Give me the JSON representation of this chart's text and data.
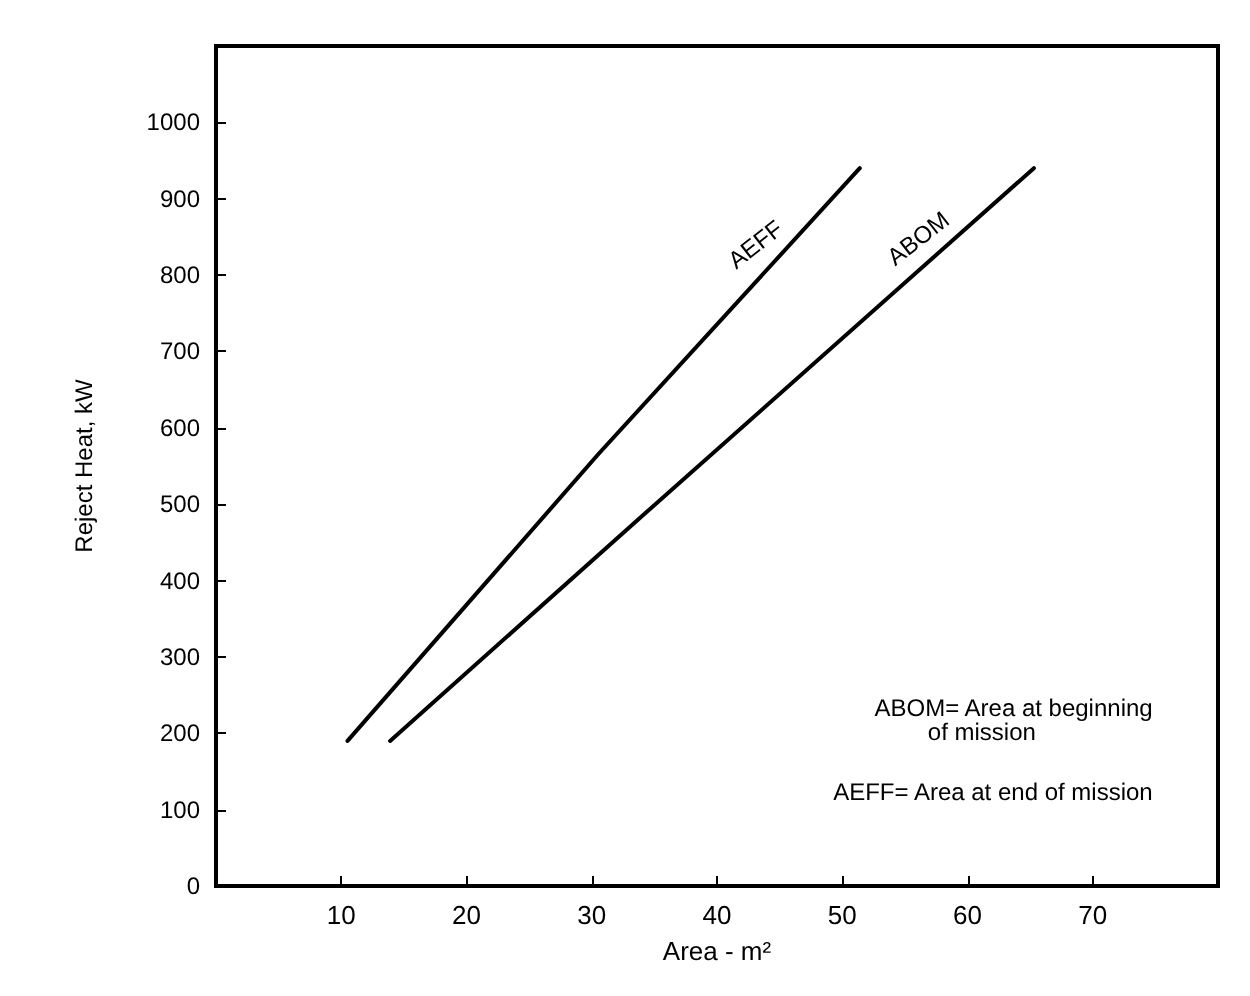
{
  "chart_data": {
    "type": "line",
    "xlabel": "Area - m²",
    "ylabel": "Reject Heat, kW",
    "xlim": [
      0,
      80
    ],
    "xticks": [
      10,
      20,
      30,
      40,
      50,
      60,
      70
    ],
    "ylim": [
      0,
      1100
    ],
    "yticks": [
      0,
      100,
      200,
      300,
      400,
      500,
      600,
      700,
      800,
      900,
      1000
    ],
    "grid": false,
    "marker": "none",
    "line_style": "solid",
    "series": [
      {
        "x": [
          10.5,
          30.5,
          51.4
        ],
        "values": [
          190,
          565,
          940
        ],
        "color": "#000000"
      },
      {
        "x": [
          13.9,
          34.4,
          65.3
        ],
        "values": [
          190,
          490,
          940
        ],
        "color": "#000000"
      }
    ],
    "annotations": [
      {
        "text": "AEFF",
        "x": 45,
        "y": 825
      },
      {
        "text": "ABOM",
        "x": 58,
        "y": 833
      },
      "ABOM= Area at beginning\n        of mission",
      "AEFF= Area at end of mission"
    ]
  }
}
